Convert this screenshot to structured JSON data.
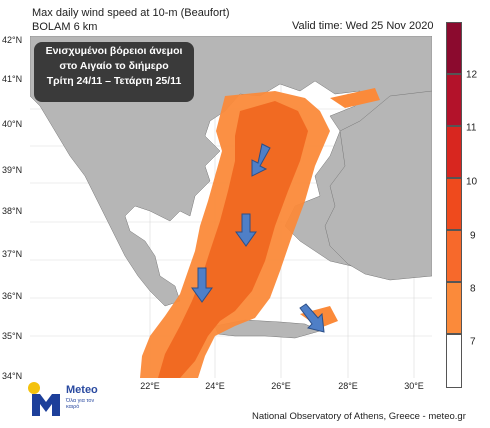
{
  "title": {
    "line1": "Max daily wind speed at 10-m (Beaufort)",
    "line2": "BOLAM 6 km"
  },
  "valid_time": "Valid time: Wed 25 Nov 2020",
  "info_box": {
    "line1": "Ενισχυμένοι βόρειοι άνεμοι",
    "line2": "στο Αιγαίο το διήμερο",
    "line3": "Τρίτη 24/11 – Τετάρτη 25/11"
  },
  "latitudes": [
    "42°N",
    "41°N",
    "40°N",
    "39°N",
    "38°N",
    "37°N",
    "36°N",
    "35°N",
    "34°N"
  ],
  "longitudes": [
    "22°E",
    "24°E",
    "26°E",
    "28°E",
    "30°E"
  ],
  "colorbar": {
    "labels": [
      "12",
      "11",
      "10",
      "9",
      "8",
      "7"
    ],
    "colors": [
      "#8b0a2e",
      "#b3122a",
      "#d8261f",
      "#ef4a1d",
      "#f7692b",
      "#fb8a3a",
      "#ffffff"
    ]
  },
  "logo": {
    "name": "Meteo",
    "tagline": "Όλα για τον καιρό"
  },
  "footer": "National Observatory of Athens, Greece - meteo.gr",
  "colors": {
    "land": "#b6b6b6",
    "sea_calm": "#ffffff",
    "wind_7": "#fb8a3a",
    "wind_8": "#f16a22",
    "arrow": "#4f7fc7"
  }
}
